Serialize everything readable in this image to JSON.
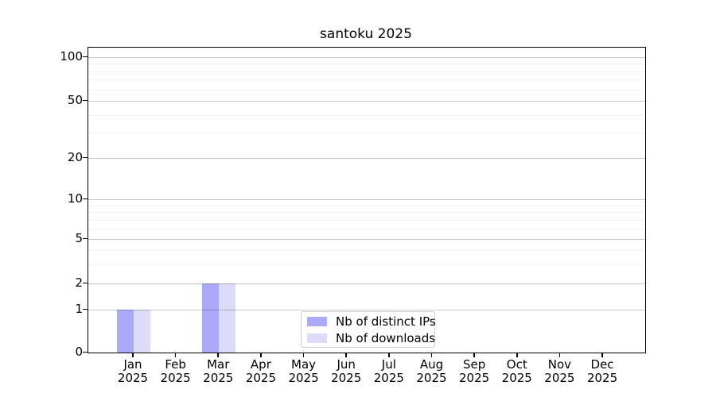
{
  "page": {
    "background": "#ffffff"
  },
  "chart_data": {
    "type": "bar",
    "title": "santoku 2025",
    "categories": [
      {
        "month": "Jan",
        "year": "2025"
      },
      {
        "month": "Feb",
        "year": "2025"
      },
      {
        "month": "Mar",
        "year": "2025"
      },
      {
        "month": "Apr",
        "year": "2025"
      },
      {
        "month": "May",
        "year": "2025"
      },
      {
        "month": "Jun",
        "year": "2025"
      },
      {
        "month": "Jul",
        "year": "2025"
      },
      {
        "month": "Aug",
        "year": "2025"
      },
      {
        "month": "Sep",
        "year": "2025"
      },
      {
        "month": "Oct",
        "year": "2025"
      },
      {
        "month": "Nov",
        "year": "2025"
      },
      {
        "month": "Dec",
        "year": "2025"
      }
    ],
    "series": [
      {
        "name": "Nb of distinct IPs",
        "color": "#aaaaf6",
        "values": [
          1,
          0,
          2,
          0,
          0,
          0,
          0,
          0,
          0,
          0,
          0,
          0
        ]
      },
      {
        "name": "Nb of downloads",
        "color": "#dcdcf8",
        "values": [
          1,
          0,
          2,
          0,
          0,
          0,
          0,
          0,
          0,
          0,
          0,
          0
        ]
      }
    ],
    "yticks": [
      0,
      1,
      2,
      5,
      10,
      20,
      50,
      100
    ],
    "ylim": [
      0,
      115
    ],
    "yscale": "log-like",
    "grid": "horizontal major and minor gridlines, drawn over bars",
    "legend_position": "bottom-center-inside",
    "frame": "full box, black"
  }
}
